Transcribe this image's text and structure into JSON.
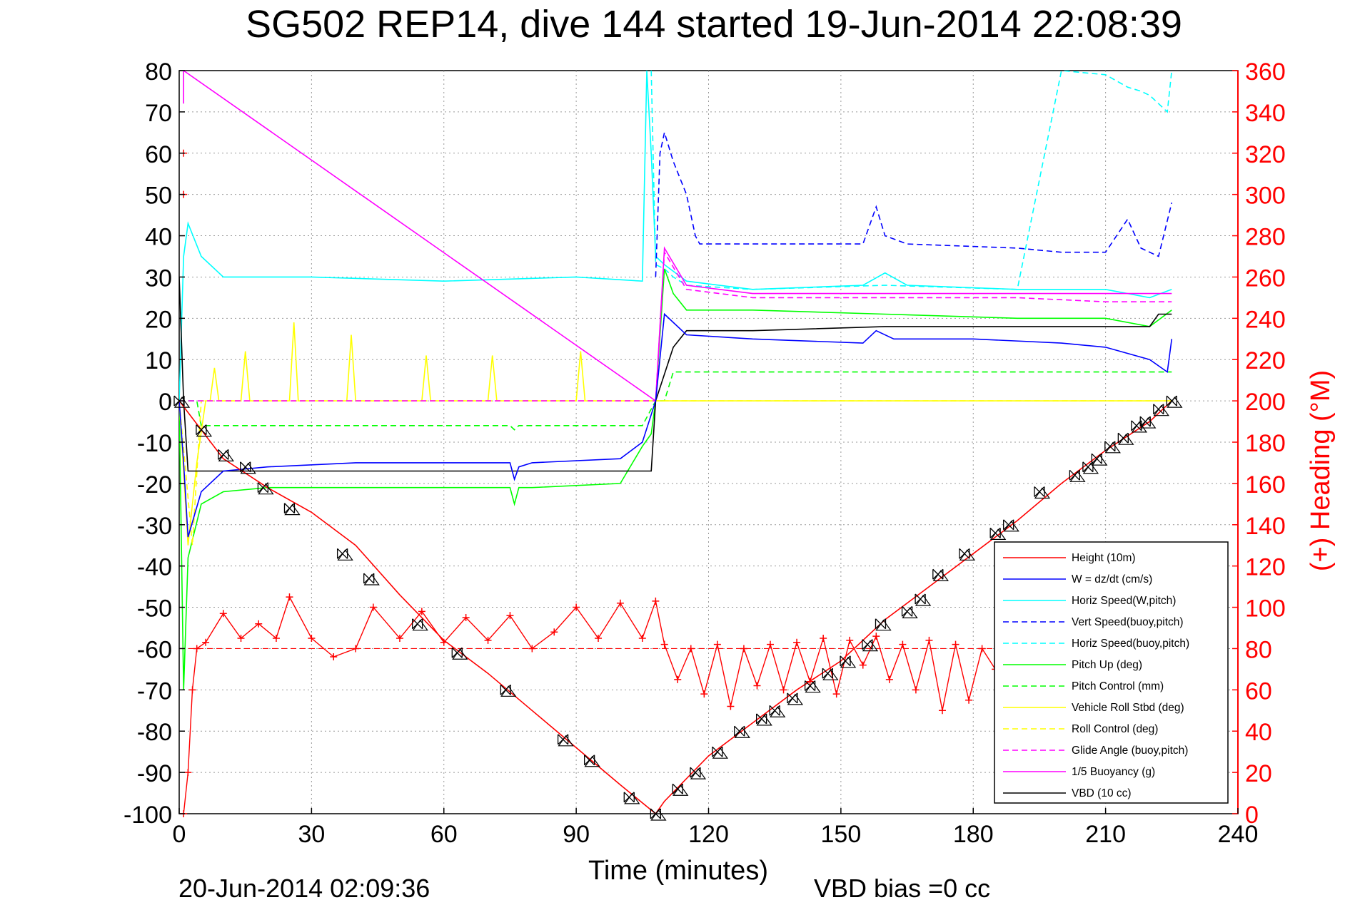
{
  "chart_data": {
    "type": "line",
    "title": "SG502 REP14, dive 144 started 19-Jun-2014 22:08:39",
    "xlabel": "Time (minutes)",
    "ylabel": "",
    "y2label": "(+) Heading (°M)",
    "footer_left": "20-Jun-2014 02:09:36",
    "footer_right": "VBD bias =0 cc",
    "xlim": [
      0,
      240
    ],
    "ylim": [
      -100,
      80
    ],
    "y2lim": [
      0,
      360
    ],
    "xticks": [
      0,
      30,
      60,
      90,
      120,
      150,
      180,
      210,
      240
    ],
    "yticks": [
      -100,
      -90,
      -80,
      -70,
      -60,
      -50,
      -40,
      -30,
      -20,
      -10,
      0,
      10,
      20,
      30,
      40,
      50,
      60,
      70,
      80
    ],
    "y2ticks": [
      0,
      20,
      40,
      60,
      80,
      100,
      120,
      140,
      160,
      180,
      200,
      220,
      240,
      260,
      280,
      300,
      320,
      340,
      360
    ],
    "grid": true,
    "legend_position": "bottom-right",
    "colors": {
      "red": "#ff0000",
      "blue": "#0000ff",
      "cyan": "#00ffff",
      "green": "#00ff00",
      "yellow": "#ffff00",
      "magenta": "#ff00ff",
      "black": "#000000"
    },
    "series": [
      {
        "name": "Height (10m)",
        "color": "#ff0000",
        "dash": "solid",
        "axis": "left",
        "x": [
          0,
          5,
          10,
          20,
          30,
          40,
          50,
          60,
          70,
          80,
          90,
          100,
          108,
          110,
          120,
          130,
          140,
          150,
          160,
          170,
          180,
          190,
          200,
          210,
          220,
          225
        ],
        "y": [
          0,
          -7,
          -14,
          -21,
          -27,
          -35,
          -47,
          -58,
          -66,
          -75,
          -84,
          -93,
          -100,
          -97,
          -86,
          -78,
          -70,
          -63,
          -53,
          -45,
          -37,
          -29,
          -20,
          -12,
          -5,
          0
        ]
      },
      {
        "name": "W = dz/dt (cm/s)",
        "color": "#0000ff",
        "dash": "solid",
        "axis": "left",
        "x": [
          0,
          1,
          2,
          5,
          10,
          20,
          40,
          60,
          75,
          76,
          77,
          80,
          100,
          105,
          108,
          110,
          115,
          130,
          155,
          158,
          162,
          180,
          200,
          210,
          220,
          224,
          225
        ],
        "y": [
          0,
          -15,
          -33,
          -22,
          -17,
          -16,
          -15,
          -15,
          -15,
          -19,
          -16,
          -15,
          -14,
          -10,
          0,
          21,
          16,
          15,
          14,
          17,
          15,
          15,
          14,
          13,
          10,
          7,
          15
        ]
      },
      {
        "name": "Horiz Speed(W,pitch)",
        "color": "#00ffff",
        "dash": "solid",
        "axis": "left",
        "x": [
          0,
          1,
          2,
          5,
          10,
          30,
          60,
          90,
          105,
          106,
          107,
          108,
          110,
          115,
          130,
          155,
          160,
          165,
          190,
          210,
          220,
          225
        ],
        "y": [
          0,
          35,
          43,
          35,
          30,
          30,
          29,
          30,
          29,
          80,
          60,
          35,
          33,
          29,
          27,
          28,
          31,
          28,
          27,
          27,
          25,
          27
        ]
      },
      {
        "name": "Vert Speed(buoy,pitch)",
        "color": "#0000ff",
        "dash": "dashed",
        "axis": "left",
        "x": [
          108,
          109,
          110,
          112,
          115,
          117,
          118,
          120,
          140,
          155,
          158,
          160,
          165,
          190,
          200,
          210,
          215,
          218,
          222,
          225
        ],
        "y": [
          30,
          60,
          65,
          58,
          50,
          40,
          38,
          38,
          38,
          38,
          47,
          40,
          38,
          37,
          36,
          36,
          44,
          37,
          35,
          48
        ]
      },
      {
        "name": "Horiz Speed(buoy,pitch)",
        "color": "#00ffff",
        "dash": "dashed",
        "axis": "left",
        "x": [
          107,
          108,
          110,
          112,
          115,
          130,
          160,
          190,
          200,
          210,
          215,
          218,
          220,
          222,
          224,
          225
        ],
        "y": [
          80,
          33,
          32,
          30,
          28,
          27,
          28,
          27,
          80,
          79,
          76,
          75,
          74,
          72,
          70,
          80
        ]
      },
      {
        "name": "Pitch Up (deg)",
        "color": "#00ff00",
        "dash": "solid",
        "axis": "left",
        "x": [
          0,
          1,
          2,
          5,
          10,
          20,
          40,
          60,
          75,
          76,
          77,
          78,
          80,
          100,
          105,
          107,
          108,
          110,
          112,
          115,
          130,
          160,
          190,
          210,
          220,
          225
        ],
        "y": [
          0,
          -70,
          -38,
          -25,
          -22,
          -21,
          -21,
          -21,
          -21,
          -25,
          -21,
          -21,
          -21,
          -20,
          -11,
          -8,
          0,
          32,
          26,
          22,
          22,
          21,
          20,
          20,
          18,
          22
        ]
      },
      {
        "name": "Pitch Control (mm)",
        "color": "#00ff00",
        "dash": "dashed",
        "axis": "left",
        "x": [
          0,
          4,
          5,
          75,
          76,
          77,
          105,
          108,
          110,
          112,
          115,
          225
        ],
        "y": [
          0,
          0,
          -6,
          -6,
          -7,
          -6,
          -6,
          0,
          0,
          7,
          7,
          7
        ]
      },
      {
        "name": "Vehicle Roll Stbd (deg)",
        "color": "#ffff00",
        "dash": "solid",
        "axis": "left",
        "x": [
          0,
          2,
          4,
          6,
          7,
          8,
          9,
          10,
          14,
          15,
          16,
          20,
          25,
          26,
          27,
          35,
          38,
          39,
          40,
          45,
          55,
          56,
          57,
          60,
          70,
          71,
          72,
          80,
          90,
          91,
          92,
          100,
          108,
          115,
          225
        ],
        "y": [
          0,
          -35,
          -15,
          0,
          0,
          8,
          0,
          0,
          0,
          12,
          0,
          0,
          0,
          19,
          0,
          0,
          0,
          16,
          0,
          0,
          0,
          11,
          0,
          0,
          0,
          11,
          0,
          0,
          0,
          12,
          0,
          0,
          0,
          0,
          0
        ]
      },
      {
        "name": "Roll Control (deg)",
        "color": "#ffff00",
        "dash": "dashed",
        "axis": "left",
        "x": [
          0,
          3,
          5,
          115,
          225
        ],
        "y": [
          0,
          -35,
          0,
          0,
          0
        ]
      },
      {
        "name": "Glide Angle (buoy,pitch)",
        "color": "#ff00ff",
        "dash": "dashed",
        "axis": "left",
        "x": [
          0,
          108,
          110,
          115,
          130,
          160,
          190,
          210,
          225
        ],
        "y": [
          0,
          0,
          36,
          27,
          25,
          25,
          25,
          24,
          24
        ]
      },
      {
        "name": "1/5 Buoyancy (g)",
        "color": "#ff00ff",
        "dash": "solid",
        "axis": "left",
        "x": [
          1,
          1,
          108,
          110,
          115,
          130,
          225
        ],
        "y": [
          72,
          80,
          0,
          37,
          28,
          26,
          26
        ]
      },
      {
        "name": "VBD (10 cc)",
        "color": "#000000",
        "dash": "solid",
        "axis": "left",
        "x": [
          0,
          1,
          2,
          105,
          107,
          108,
          112,
          115,
          130,
          160,
          190,
          220,
          222,
          225
        ],
        "y": [
          30,
          0,
          -17,
          -17,
          -17,
          0,
          13,
          17,
          17,
          18,
          18,
          18,
          21,
          21
        ]
      }
    ],
    "heading_series": {
      "name": "heading",
      "color": "#ff0000",
      "marker": "+",
      "axis": "right",
      "x": [
        1,
        2,
        3,
        4,
        6,
        10,
        14,
        18,
        22,
        25,
        30,
        35,
        40,
        44,
        50,
        55,
        60,
        65,
        70,
        75,
        80,
        85,
        90,
        95,
        100,
        105,
        108,
        110,
        113,
        116,
        119,
        122,
        125,
        128,
        131,
        134,
        137,
        140,
        143,
        146,
        149,
        152,
        155,
        158,
        161,
        164,
        167,
        170,
        173,
        176,
        179,
        182,
        185
      ],
      "y": [
        0,
        20,
        60,
        80,
        83,
        97,
        85,
        92,
        85,
        105,
        85,
        76,
        80,
        100,
        85,
        98,
        83,
        95,
        84,
        96,
        80,
        88,
        100,
        85,
        102,
        85,
        103,
        82,
        65,
        80,
        58,
        82,
        52,
        80,
        62,
        82,
        60,
        83,
        64,
        85,
        58,
        84,
        72,
        86,
        65,
        82,
        60,
        84,
        50,
        82,
        55,
        80,
        70
      ]
    },
    "heading_start_x": 1,
    "heading_start_y": [
      300,
      320
    ],
    "heading_reference": 80,
    "depth_markers": {
      "x": [
        0,
        5,
        10,
        15,
        19,
        25,
        37,
        43,
        54,
        63,
        74,
        87,
        93,
        102,
        108,
        113,
        117,
        122,
        127,
        132,
        135,
        139,
        143,
        147,
        151,
        156,
        159,
        165,
        168,
        172,
        178,
        185,
        188,
        195,
        203,
        206,
        208,
        211,
        214,
        217,
        219,
        222,
        225
      ],
      "y": [
        0,
        -7,
        -13,
        -16,
        -21,
        -26,
        -37,
        -43,
        -54,
        -61,
        -70,
        -82,
        -87,
        -96,
        -100,
        -94,
        -90,
        -85,
        -80,
        -77,
        -75,
        -72,
        -69,
        -66,
        -63,
        -59,
        -54,
        -51,
        -48,
        -42,
        -37,
        -32,
        -30,
        -22,
        -18,
        -16,
        -14,
        -11,
        -9,
        -6,
        -5,
        -2,
        0
      ]
    },
    "legend": [
      "Height (10m)",
      "W = dz/dt (cm/s)",
      "Horiz Speed(W,pitch)",
      "Vert Speed(buoy,pitch)",
      "Horiz Speed(buoy,pitch)",
      "Pitch Up (deg)",
      "Pitch Control (mm)",
      "Vehicle Roll Stbd (deg)",
      "Roll Control (deg)",
      "Glide Angle (buoy,pitch)",
      "1/5 Buoyancy (g)",
      "VBD (10 cc)"
    ]
  }
}
